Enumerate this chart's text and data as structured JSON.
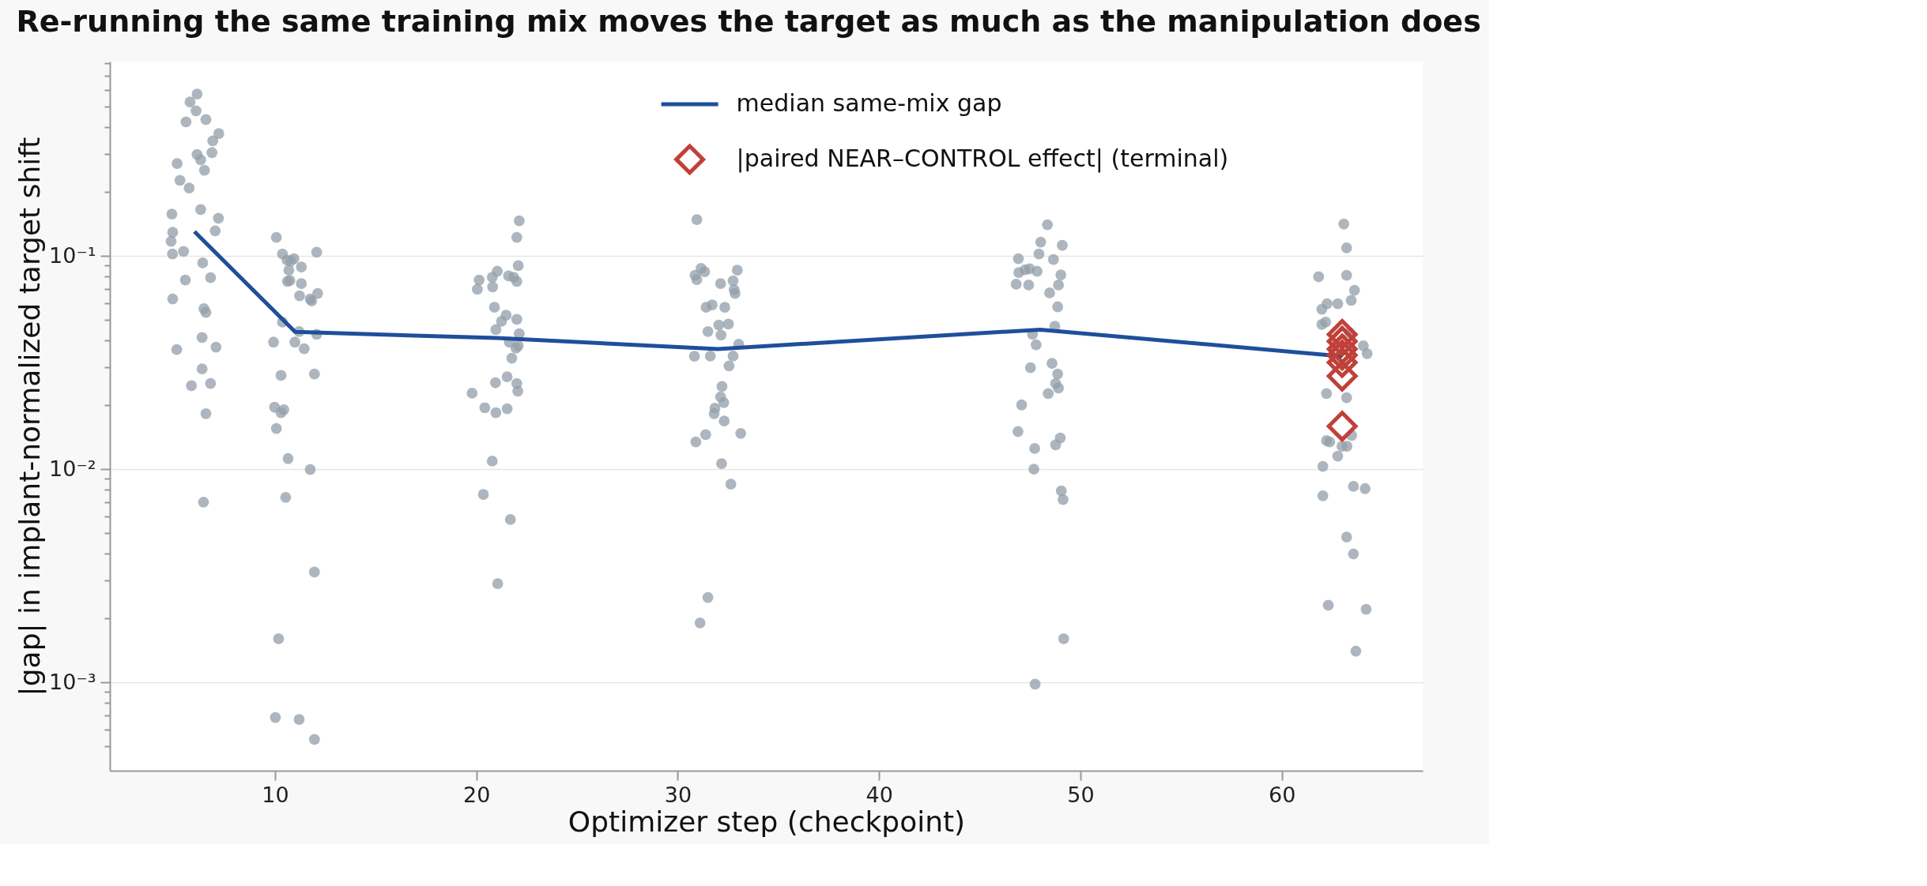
{
  "chart_data": {
    "type": "scatter",
    "title": "Re-running the same training mix moves the target as much as the manipulation does",
    "xlabel": "Optimizer step (checkpoint)",
    "ylabel": "|gap| in implant-normalized target shift",
    "log": "y",
    "xlim": [
      1.8,
      67
    ],
    "xticks": [
      10,
      20,
      30,
      40,
      50,
      60
    ],
    "ylim": [
      0.000385,
      0.815
    ],
    "yticks": [
      {
        "value": 0.0005,
        "label": null
      },
      {
        "value": 0.0006,
        "label": null
      },
      {
        "value": 0.0007,
        "label": null
      },
      {
        "value": 0.0008,
        "label": null
      },
      {
        "value": 0.0009,
        "label": null
      },
      {
        "value": 0.001,
        "label": "10⁻³"
      },
      {
        "value": 0.002,
        "label": null
      },
      {
        "value": 0.003,
        "label": null
      },
      {
        "value": 0.004,
        "label": null
      },
      {
        "value": 0.005,
        "label": null
      },
      {
        "value": 0.006,
        "label": null
      },
      {
        "value": 0.007,
        "label": null
      },
      {
        "value": 0.008,
        "label": null
      },
      {
        "value": 0.009,
        "label": null
      },
      {
        "value": 0.01,
        "label": "10⁻²"
      },
      {
        "value": 0.02,
        "label": null
      },
      {
        "value": 0.03,
        "label": null
      },
      {
        "value": 0.04,
        "label": null
      },
      {
        "value": 0.05,
        "label": null
      },
      {
        "value": 0.06,
        "label": null
      },
      {
        "value": 0.07,
        "label": null
      },
      {
        "value": 0.08,
        "label": null
      },
      {
        "value": 0.09,
        "label": null
      },
      {
        "value": 0.1,
        "label": "10⁻¹"
      },
      {
        "value": 0.2,
        "label": null
      },
      {
        "value": 0.3,
        "label": null
      },
      {
        "value": 0.4,
        "label": null
      },
      {
        "value": 0.5,
        "label": null
      },
      {
        "value": 0.6,
        "label": null
      },
      {
        "value": 0.7,
        "label": null
      },
      {
        "value": 0.8,
        "label": null
      }
    ],
    "grid": "y",
    "legend": "top",
    "series": [
      {
        "type": "scatter",
        "marker": "circle",
        "color": "#929ea8",
        "x": [
          6.13,
          5.78,
          6.08,
          5.58,
          6.57,
          7.21,
          6.91,
          6.13,
          6.87,
          6.31,
          6.5,
          5.14,
          5.28,
          5.74,
          6.31,
          7.19,
          4.88,
          4.92,
          7.03,
          4.84,
          4.91,
          5.46,
          6.41,
          5.55,
          6.8,
          4.92,
          6.47,
          6.57,
          6.38,
          5.12,
          7.07,
          6.38,
          5.85,
          6.8,
          6.57,
          6.45,
          10.07,
          10.37,
          10.6,
          10.94,
          10.78,
          12.07,
          10.69,
          11.31,
          10.62,
          10.74,
          11.31,
          11.22,
          11.75,
          11.82,
          12.12,
          10.37,
          11.2,
          12.07,
          9.93,
          10.99,
          11.45,
          10.3,
          11.96,
          9.98,
          10.44,
          10.3,
          10.07,
          10.65,
          11.75,
          10.53,
          11.96,
          10.18,
          10.02,
          11.2,
          11.96,
          22.13,
          22.01,
          22.08,
          20.14,
          20.05,
          20.79,
          21.04,
          20.81,
          21.6,
          21.85,
          22.01,
          20.9,
          21.48,
          21.25,
          22.01,
          20.97,
          22.13,
          21.64,
          21.97,
          22.08,
          21.76,
          20.95,
          21.53,
          22.01,
          22.06,
          19.79,
          20.42,
          20.97,
          21.53,
          20.79,
          20.35,
          21.69,
          21.06,
          30.95,
          31.16,
          31.34,
          30.86,
          30.95,
          32.13,
          32.75,
          32.96,
          32.8,
          32.85,
          31.41,
          31.71,
          32.34,
          32.04,
          32.52,
          31.5,
          32.15,
          33.03,
          30.83,
          31.62,
          32.75,
          32.55,
          32.2,
          32.13,
          32.29,
          31.85,
          31.81,
          32.31,
          33.13,
          31.39,
          30.9,
          32.18,
          32.64,
          31.5,
          31.11,
          48.36,
          48.03,
          49.1,
          47.94,
          46.92,
          48.66,
          46.94,
          47.25,
          47.48,
          47.85,
          49.03,
          46.81,
          47.43,
          48.91,
          48.47,
          48.87,
          48.73,
          47.62,
          47.8,
          48.59,
          47.52,
          48.87,
          48.77,
          48.91,
          48.4,
          47.08,
          46.9,
          49.0,
          48.77,
          47.73,
          47.69,
          49.05,
          49.14,
          49.17,
          47.75,
          63.08,
          63.22,
          63.22,
          61.83,
          63.61,
          63.45,
          62.25,
          62.78,
          61.99,
          62.18,
          61.99,
          63.36,
          64.05,
          64.24,
          62.22,
          63.22,
          63.47,
          62.22,
          62.38,
          63.24,
          62.99,
          62.78,
          62.04,
          62.04,
          63.56,
          64.14,
          63.22,
          63.56,
          62.31,
          64.19,
          63.68
        ],
        "values": [
          0.574,
          0.527,
          0.479,
          0.425,
          0.436,
          0.375,
          0.346,
          0.299,
          0.305,
          0.282,
          0.252,
          0.271,
          0.226,
          0.208,
          0.165,
          0.15,
          0.157,
          0.129,
          0.131,
          0.117,
          0.102,
          0.105,
          0.0927,
          0.0771,
          0.079,
          0.0628,
          0.0565,
          0.0543,
          0.0414,
          0.0364,
          0.0373,
          0.0295,
          0.0246,
          0.0252,
          0.0182,
          0.007,
          0.122,
          0.102,
          0.0955,
          0.097,
          0.0946,
          0.104,
          0.0857,
          0.0887,
          0.0759,
          0.0767,
          0.0741,
          0.065,
          0.0628,
          0.0615,
          0.0667,
          0.0489,
          0.0442,
          0.0429,
          0.0394,
          0.0394,
          0.0367,
          0.0275,
          0.0279,
          0.0195,
          0.019,
          0.0184,
          0.0155,
          0.0112,
          0.00995,
          0.00737,
          0.00329,
          0.0016,
          0.000684,
          0.00067,
          0.00054,
          0.146,
          0.122,
          0.09,
          0.0771,
          0.0697,
          0.0794,
          0.0847,
          0.0715,
          0.0806,
          0.0794,
          0.0759,
          0.0574,
          0.0527,
          0.0493,
          0.0504,
          0.0451,
          0.0431,
          0.0394,
          0.0369,
          0.0379,
          0.0331,
          0.0254,
          0.0271,
          0.0252,
          0.0232,
          0.0227,
          0.0194,
          0.0184,
          0.0192,
          0.0109,
          0.0076,
          0.0058,
          0.0029,
          0.148,
          0.0873,
          0.0843,
          0.0811,
          0.0774,
          0.0741,
          0.0764,
          0.0857,
          0.0694,
          0.0667,
          0.0574,
          0.0589,
          0.0574,
          0.0474,
          0.0479,
          0.0442,
          0.0425,
          0.0385,
          0.0338,
          0.0339,
          0.0339,
          0.0305,
          0.0244,
          0.0218,
          0.0205,
          0.0193,
          0.0182,
          0.0168,
          0.0147,
          0.0145,
          0.0134,
          0.0106,
          0.0085,
          0.0025,
          0.0019,
          0.14,
          0.116,
          0.112,
          0.102,
          0.097,
          0.0961,
          0.0835,
          0.0861,
          0.0869,
          0.0847,
          0.0815,
          0.0736,
          0.073,
          0.073,
          0.067,
          0.0577,
          0.0468,
          0.0429,
          0.0383,
          0.0313,
          0.0299,
          0.0279,
          0.0252,
          0.024,
          0.0226,
          0.02,
          0.015,
          0.014,
          0.013,
          0.0125,
          0.01,
          0.0079,
          0.0072,
          0.0016,
          0.00098,
          0.141,
          0.109,
          0.0811,
          0.0798,
          0.069,
          0.0618,
          0.0597,
          0.0597,
          0.0562,
          0.0489,
          0.0477,
          0.0436,
          0.0379,
          0.0348,
          0.0226,
          0.0216,
          0.0144,
          0.0136,
          0.0134,
          0.0128,
          0.0128,
          0.0115,
          0.0103,
          0.0075,
          0.0083,
          0.0081,
          0.0048,
          0.004,
          0.0023,
          0.0022,
          0.0014
        ]
      },
      {
        "type": "line",
        "name": "median same-mix gap",
        "color": "#1f4e9c",
        "marker": "none",
        "line_style": "solid",
        "x": [
          6,
          11,
          21,
          32,
          48,
          63
        ],
        "values": [
          0.13,
          0.044,
          0.0412,
          0.0366,
          0.0451,
          0.0338
        ]
      },
      {
        "type": "scatter",
        "name": "|paired NEAR–CONTROL effect| (terminal)",
        "color": "#c0403a",
        "marker": "diamond",
        "x": [
          63,
          63,
          63,
          63,
          63,
          63,
          63
        ],
        "values": [
          0.0428,
          0.0397,
          0.0366,
          0.0342,
          0.0316,
          0.0273,
          0.0159
        ]
      }
    ]
  }
}
